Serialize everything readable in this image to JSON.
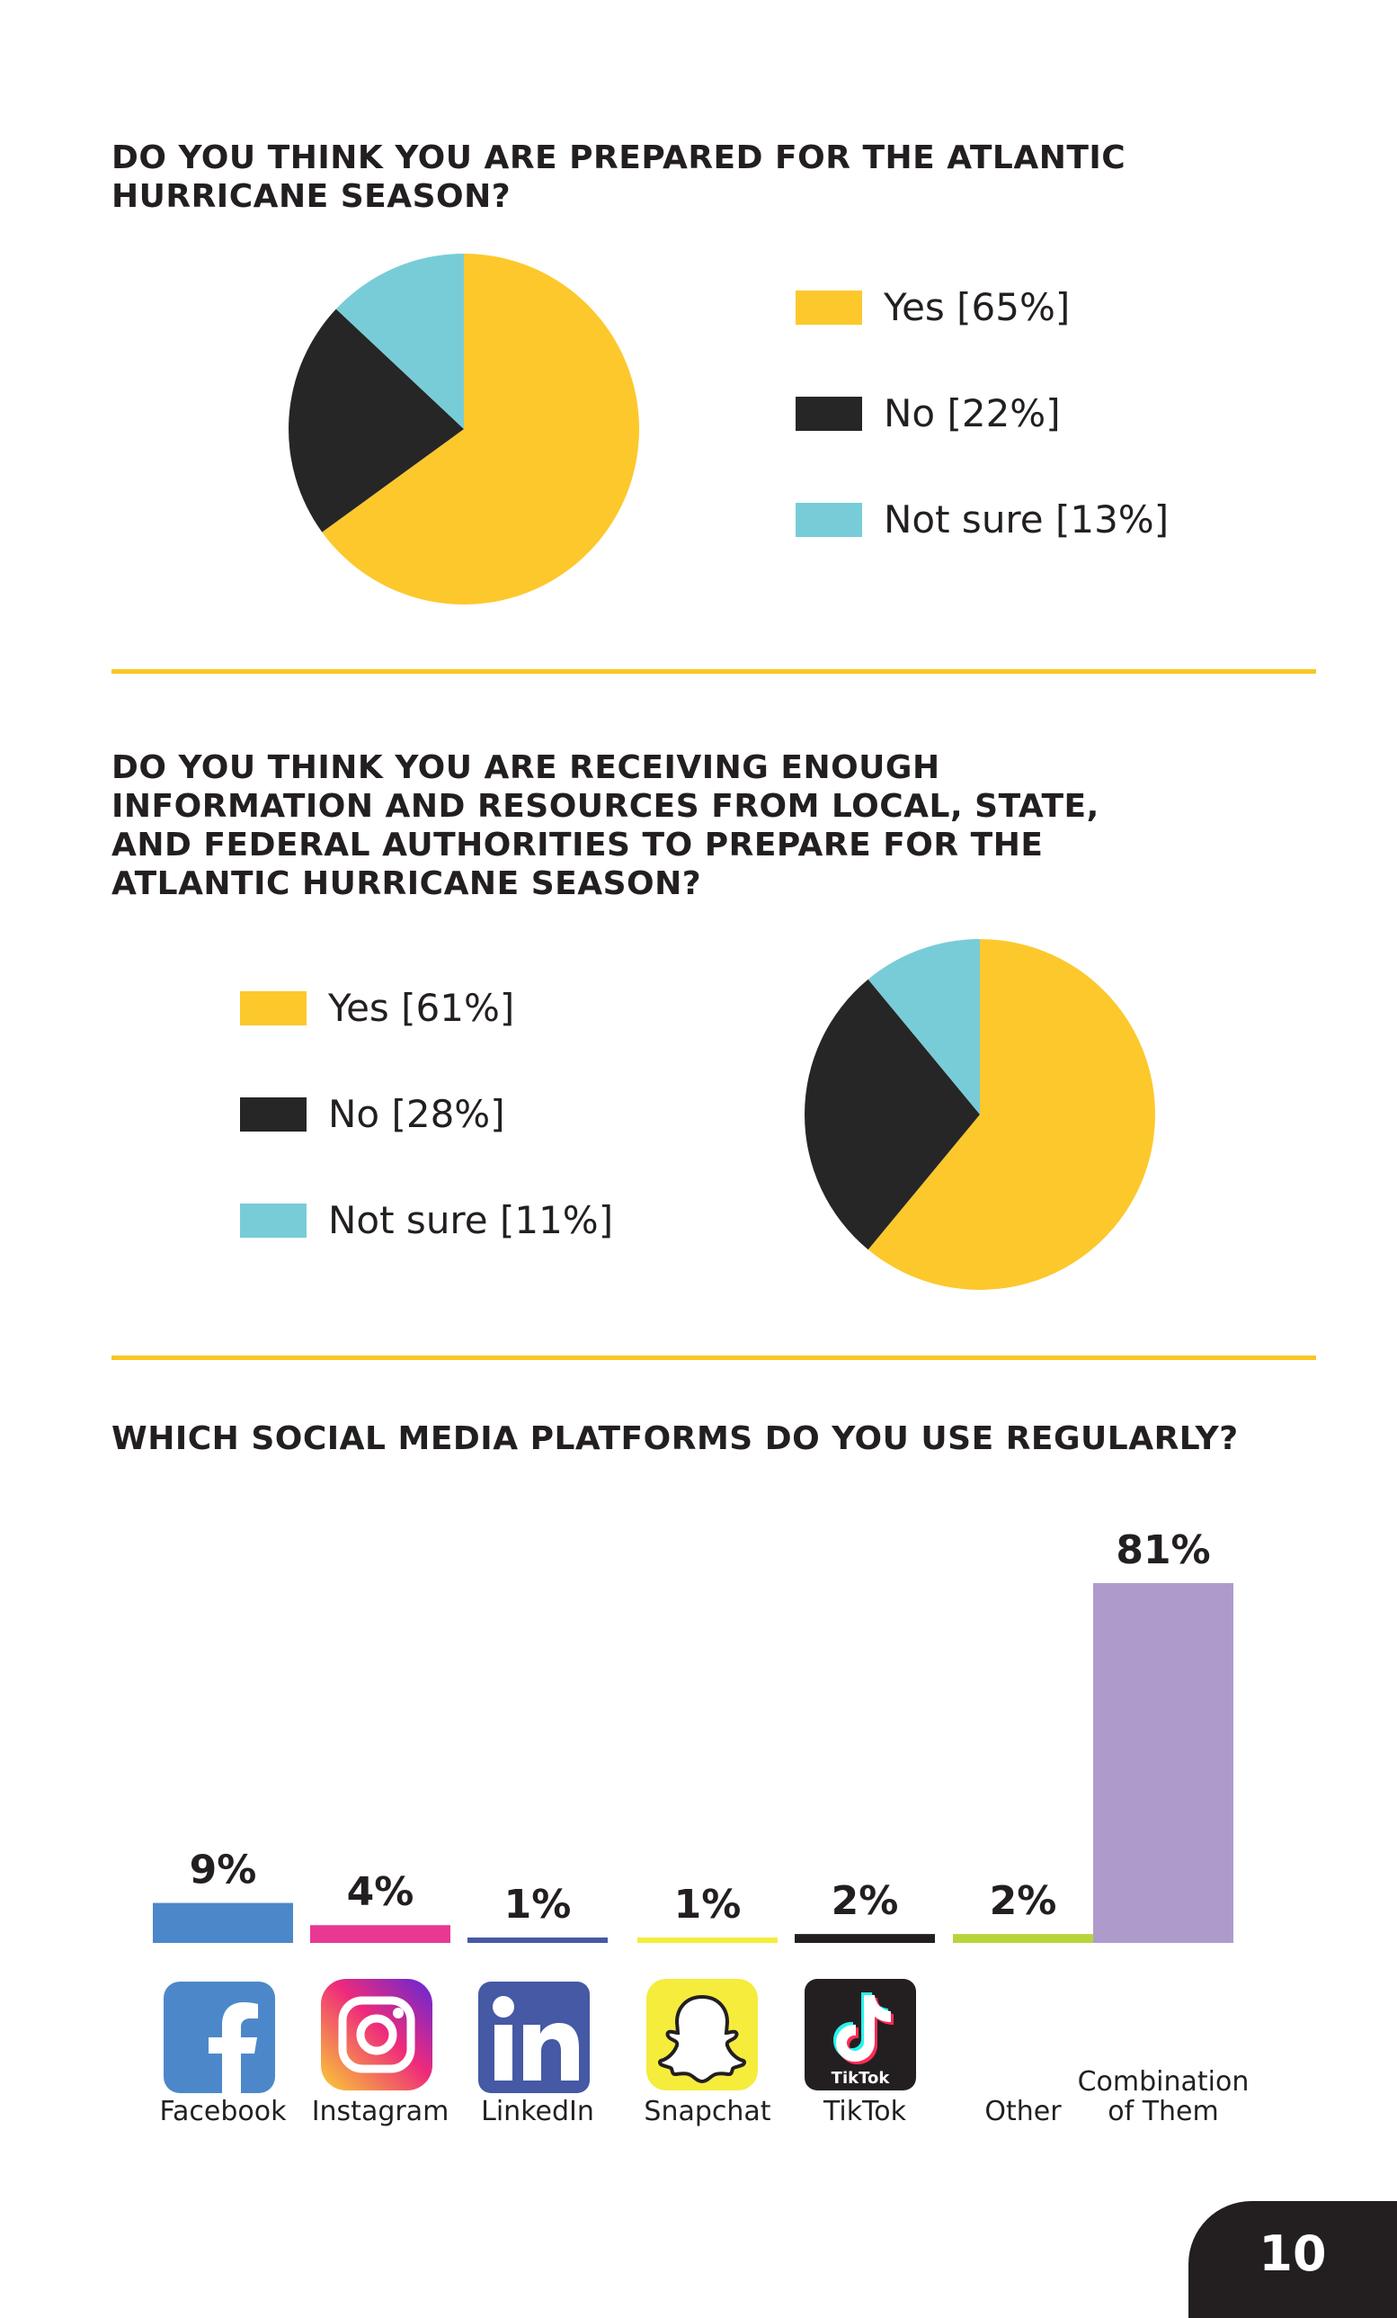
{
  "colors": {
    "yes": "#fcc82c",
    "no": "#262626",
    "not_sure": "#78ccd8",
    "divider": "#f9c623",
    "facebook": "#4c88c9",
    "instagram": "#e83892",
    "linkedin": "#4559a4",
    "snapchat": "#f5ec3c",
    "tiktok": "#231f20",
    "other": "#b7d43b",
    "combination": "#ae9bcb"
  },
  "section1": {
    "title_line1": "DO YOU THINK YOU ARE PREPARED FOR THE ATLANTIC",
    "title_line2": "HURRICANE SEASON?"
  },
  "section2": {
    "title_line1": "DO YOU THINK YOU ARE RECEIVING ENOUGH",
    "title_line2": "INFORMATION AND RESOURCES FROM LOCAL, STATE,",
    "title_line3": "AND FEDERAL AUTHORITIES TO PREPARE FOR THE",
    "title_line4": "ATLANTIC HURRICANE SEASON?"
  },
  "section3": {
    "title": "WHICH SOCIAL MEDIA PLATFORMS DO YOU USE REGULARLY?"
  },
  "page_number": "10",
  "chart_data": [
    {
      "type": "pie",
      "labels": [
        "Yes [65%]",
        "No [22%]",
        "Not sure [13%]"
      ],
      "values": [
        65,
        22,
        13
      ],
      "colors": [
        "#fcc82c",
        "#262626",
        "#78ccd8"
      ],
      "legend": "right"
    },
    {
      "type": "pie",
      "labels": [
        "Yes [61%]",
        "No [28%]",
        "Not sure [11%]"
      ],
      "values": [
        61,
        28,
        11
      ],
      "colors": [
        "#fcc82c",
        "#262626",
        "#78ccd8"
      ],
      "legend": "left"
    },
    {
      "type": "bar",
      "categories": [
        "Facebook",
        "Instagram",
        "LinkedIn",
        "Snapchat",
        "TikTok",
        "Other",
        "Combination of Them"
      ],
      "category_lines": [
        [
          "Facebook"
        ],
        [
          "Instagram"
        ],
        [
          "LinkedIn"
        ],
        [
          "Snapchat"
        ],
        [
          "TikTok"
        ],
        [
          "Other"
        ],
        [
          "Combination",
          "of Them"
        ]
      ],
      "values": [
        9,
        4,
        1,
        1,
        2,
        2,
        81
      ],
      "value_labels": [
        "9%",
        "4%",
        "1%",
        "1%",
        "2%",
        "2%",
        "81%"
      ],
      "colors": [
        "#4c88c9",
        "#e83892",
        "#4559a4",
        "#f5ec3c",
        "#231f20",
        "#b7d43b",
        "#ae9bcb"
      ],
      "icons": [
        "facebook-icon",
        "instagram-icon",
        "linkedin-icon",
        "snapchat-icon",
        "tiktok-icon",
        "",
        ""
      ],
      "logo_text": {
        "tiktok": "TikTok"
      },
      "ylim": [
        0,
        81
      ]
    }
  ]
}
